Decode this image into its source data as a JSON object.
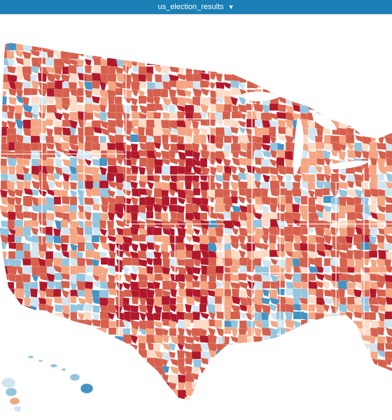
{
  "header": {
    "dataset_label": "us_election_results",
    "dropdown_icon": "triangle-down-icon"
  },
  "map": {
    "legend_colors": {
      "strong_rep": "#b2182b",
      "rep": "#d6604d",
      "lean_rep": "#f4a582",
      "tilt_rep": "#fddbc7",
      "tilt_dem": "#d1e5f0",
      "lean_dem": "#92c5de",
      "dem": "#4393c3",
      "strong_dem": "#2166ac"
    },
    "ocean_color": "#ffffff",
    "boundary_color": "#ffffff"
  }
}
